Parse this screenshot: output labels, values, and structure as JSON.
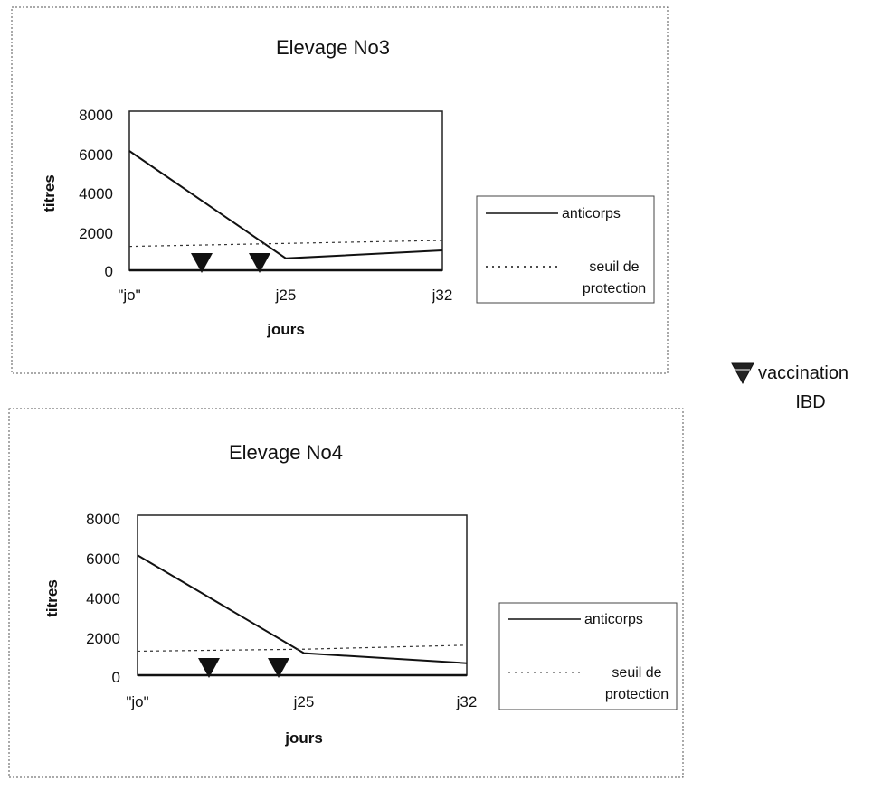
{
  "legend_side": {
    "icon": "down-triangle-icon",
    "label_line1": "vaccination",
    "label_line2": "IBD"
  },
  "chart_data": [
    {
      "type": "line",
      "title": "Elevage No3",
      "xlabel": "jours",
      "ylabel": "titres",
      "ylim": [
        0,
        8000
      ],
      "yticks": [
        "8000",
        "6000",
        "4000",
        "2000",
        "0"
      ],
      "categories": [
        "\"jo\"",
        "j25",
        "j32"
      ],
      "series": [
        {
          "name": "anticorps",
          "style": "solid",
          "x": [
            "\"jo\"",
            "j25",
            "j32"
          ],
          "values": [
            6000,
            600,
            1000
          ]
        },
        {
          "name": "seuil de protection",
          "style": "dotted",
          "x": [
            "\"jo\"",
            "j25",
            "j32"
          ],
          "values": [
            1200,
            1350,
            1500
          ]
        }
      ],
      "vaccination_markers": [
        2,
        2
      ],
      "legend": [
        {
          "line1": "anticorps",
          "line2": ""
        },
        {
          "line1": "seuil de",
          "line2": "protection"
        }
      ]
    },
    {
      "type": "line",
      "title": "Elevage No4",
      "xlabel": "jours",
      "ylabel": "titres",
      "ylim": [
        0,
        8000
      ],
      "yticks": [
        "8000",
        "6000",
        "4000",
        "2000",
        "0"
      ],
      "categories": [
        "\"jo\"",
        "j25",
        "j32"
      ],
      "series": [
        {
          "name": "anticorps",
          "style": "solid",
          "x": [
            "\"jo\"",
            "j25",
            "j32"
          ],
          "values": [
            6000,
            1100,
            600
          ]
        },
        {
          "name": "seuil de protection",
          "style": "dotted",
          "x": [
            "\"jo\"",
            "j25",
            "j32"
          ],
          "values": [
            1200,
            1300,
            1500
          ]
        }
      ],
      "vaccination_markers": [
        2,
        2
      ],
      "legend": [
        {
          "line1": "anticorps",
          "line2": ""
        },
        {
          "line1": "seuil de",
          "line2": "protection"
        }
      ]
    }
  ]
}
